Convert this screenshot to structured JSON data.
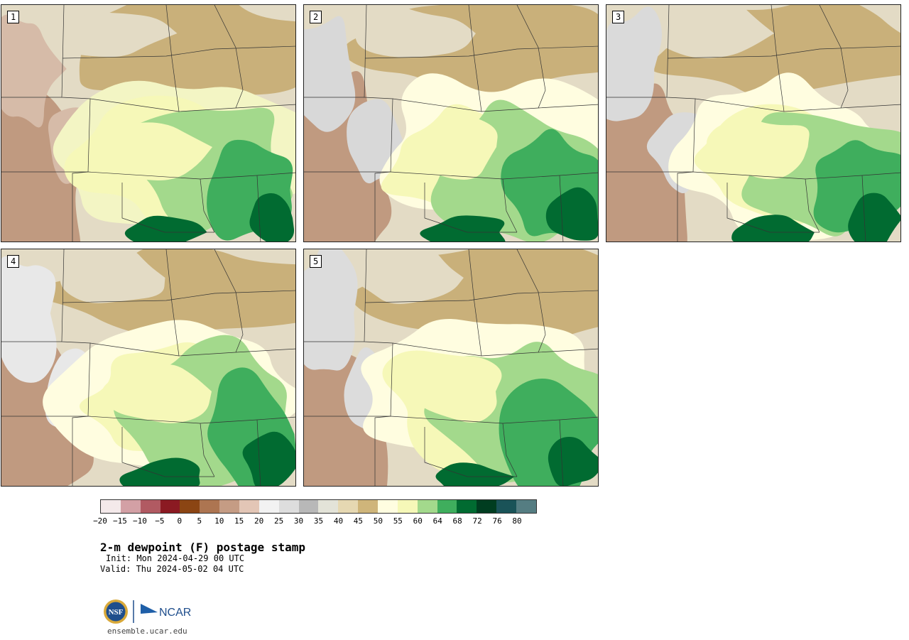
{
  "panels": [
    {
      "label": "1",
      "palette": [
        "#c09a80",
        "#d6bba8",
        "#e3dbc5",
        "#c9b07a",
        "#f3f5c4",
        "#f6f8b8",
        "#a3d98c",
        "#3fae5d",
        "#016b31"
      ]
    },
    {
      "label": "2",
      "palette": [
        "#c09a80",
        "#d8d8d8",
        "#e3dbc5",
        "#c9b07a",
        "#fffde0",
        "#f6f8b8",
        "#a3d98c",
        "#3fae5d",
        "#016b31"
      ]
    },
    {
      "label": "3",
      "palette": [
        "#c09a80",
        "#dadada",
        "#e3dbc5",
        "#c9b07a",
        "#fffde0",
        "#f6f8b8",
        "#a3d98c",
        "#3fae5d",
        "#016b31"
      ]
    },
    {
      "label": "4",
      "palette": [
        "#c09a80",
        "#e8e8e8",
        "#e3dbc5",
        "#c9b07a",
        "#fffde0",
        "#f6f8b8",
        "#a3d98c",
        "#3fae5d",
        "#016b31"
      ]
    },
    {
      "label": "5",
      "palette": [
        "#c09a80",
        "#dcdcdc",
        "#e3dbc5",
        "#c9b07a",
        "#fffde0",
        "#f6f8b8",
        "#a3d98c",
        "#3fae5d",
        "#016b31"
      ]
    }
  ],
  "colorbar": {
    "colors": [
      "#f4e9ea",
      "#d3a0a5",
      "#b15a62",
      "#8b1a22",
      "#8b4513",
      "#ad7551",
      "#c59c84",
      "#e3c6b6",
      "#f2f2f2",
      "#dddddd",
      "#b8b8b8",
      "#e3e3d8",
      "#e6d8b2",
      "#cfb57a",
      "#fffde0",
      "#f6f8b8",
      "#a3d98c",
      "#3fae5d",
      "#016b31",
      "#003d20",
      "#1a5358",
      "#557d82"
    ],
    "ticks": [
      "−20",
      "−15",
      "−10",
      "−5",
      "0",
      "5",
      "10",
      "15",
      "20",
      "25",
      "30",
      "35",
      "40",
      "45",
      "50",
      "55",
      "60",
      "64",
      "68",
      "72",
      "76",
      "80"
    ]
  },
  "title": "2-m dewpoint (F) postage stamp",
  "init": "Init: Mon 2024-04-29 00 UTC",
  "valid": "Valid: Thu 2024-05-02 04 UTC",
  "logo_nsf": "NSF",
  "logo_ncar": "NCAR",
  "site": "ensemble.ucar.edu"
}
